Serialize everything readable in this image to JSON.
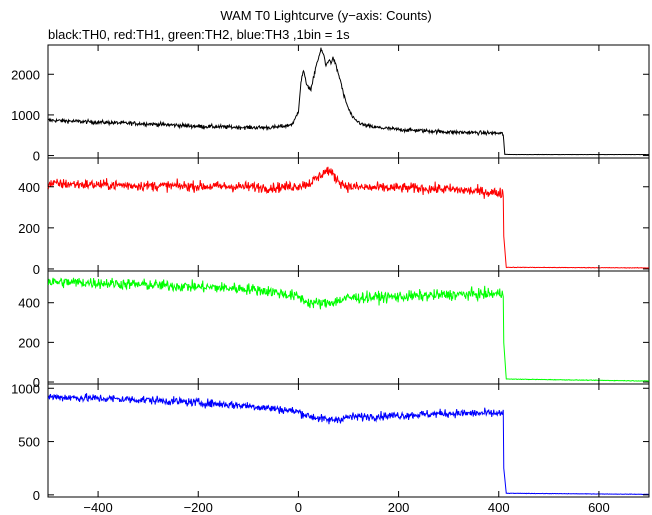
{
  "chart_data": {
    "type": "line",
    "title": "WAM T0 Lightcurve (y−axis: Counts)",
    "subtitle": "black:TH0, red:TH1, green:TH2, blue:TH3 ,1bin = 1s",
    "xlim": [
      -500,
      700
    ],
    "xticks": [
      -400,
      -200,
      0,
      200,
      400,
      600
    ],
    "xtick_labels": [
      "−400",
      "−200",
      "0",
      "200",
      "400",
      "600"
    ],
    "grid": false,
    "panels": [
      {
        "series": "TH0",
        "color": "#000000",
        "ylim": [
          -60,
          2720
        ],
        "yticks": [
          0,
          1000,
          2000
        ],
        "ytick_labels": [
          "0",
          "1000",
          "2000"
        ],
        "x": [
          -500,
          -400,
          -300,
          -200,
          -100,
          -50,
          -20,
          -10,
          0,
          5,
          10,
          15,
          20,
          25,
          30,
          35,
          40,
          45,
          50,
          55,
          60,
          65,
          70,
          75,
          80,
          85,
          90,
          100,
          110,
          130,
          150,
          200,
          300,
          400,
          409,
          412,
          430,
          700
        ],
        "y": [
          870,
          820,
          780,
          720,
          690,
          690,
          740,
          800,
          1100,
          1800,
          2100,
          1800,
          1700,
          1600,
          1900,
          2200,
          2400,
          2600,
          2500,
          2200,
          2350,
          2300,
          2400,
          2200,
          2000,
          1800,
          1500,
          1150,
          900,
          750,
          700,
          640,
          580,
          550,
          530,
          30,
          25,
          25
        ],
        "noise": 35
      },
      {
        "series": "TH1",
        "color": "#ff0000",
        "ylim": [
          -10,
          540
        ],
        "yticks": [
          0,
          200,
          400
        ],
        "ytick_labels": [
          "0",
          "200",
          "400"
        ],
        "x": [
          -500,
          -300,
          -100,
          -50,
          0,
          20,
          40,
          50,
          60,
          70,
          80,
          90,
          100,
          150,
          200,
          300,
          400,
          409,
          410,
          415,
          700
        ],
        "y": [
          415,
          405,
          400,
          395,
          405,
          415,
          445,
          470,
          480,
          455,
          430,
          410,
          400,
          395,
          395,
          388,
          370,
          370,
          160,
          8,
          5
        ],
        "noise": 18
      },
      {
        "series": "TH2",
        "color": "#00ff00",
        "ylim": [
          -10,
          560
        ],
        "yticks": [
          0,
          200,
          400
        ],
        "ytick_labels": [
          "0",
          "200",
          "400"
        ],
        "x": [
          -500,
          -400,
          -300,
          -200,
          -100,
          -50,
          0,
          20,
          50,
          80,
          100,
          200,
          300,
          400,
          409,
          410,
          415,
          700
        ],
        "y": [
          505,
          500,
          490,
          480,
          470,
          455,
          430,
          400,
          395,
          410,
          425,
          430,
          440,
          445,
          445,
          200,
          15,
          5
        ],
        "noise": 20
      },
      {
        "series": "TH3",
        "color": "#0000ff",
        "ylim": [
          -20,
          1040
        ],
        "yticks": [
          0,
          500,
          1000
        ],
        "ytick_labels": [
          "0",
          "500",
          "1000"
        ],
        "x": [
          -500,
          -400,
          -300,
          -200,
          -100,
          -50,
          0,
          20,
          40,
          60,
          80,
          100,
          200,
          300,
          400,
          409,
          410,
          415,
          700
        ],
        "y": [
          920,
          905,
          890,
          865,
          835,
          810,
          780,
          740,
          720,
          700,
          710,
          730,
          745,
          765,
          765,
          765,
          250,
          15,
          5
        ],
        "noise": 28
      }
    ]
  }
}
